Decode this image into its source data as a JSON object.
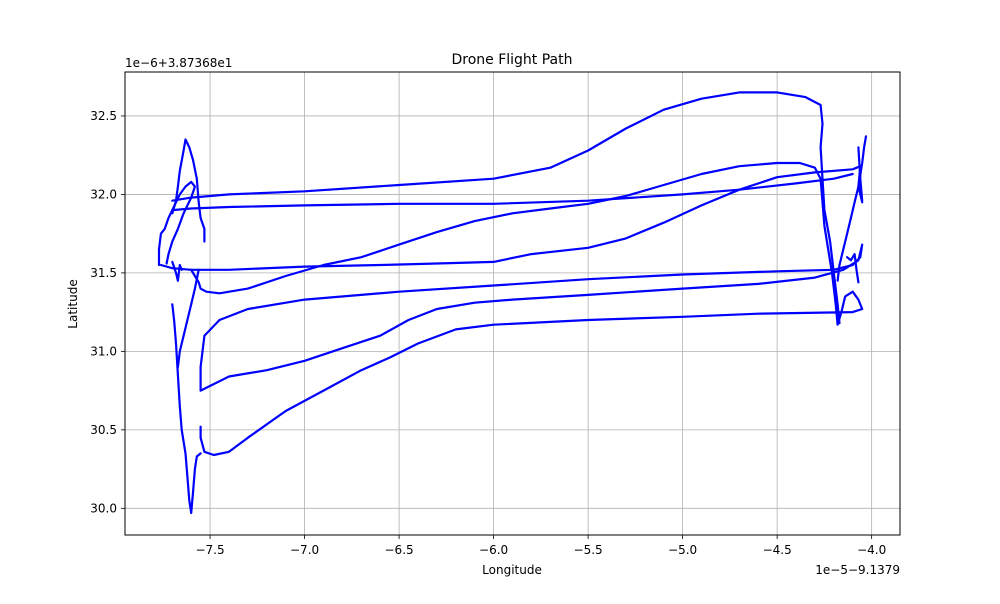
{
  "chart_data": {
    "type": "line",
    "title": "Drone Flight Path",
    "xlabel": "Longitude",
    "ylabel": "Latitude",
    "x_offset_label": "1e−5−9.1379",
    "y_offset_label": "1e−6+3.87368e1",
    "xlim": [
      -7.95,
      -3.85
    ],
    "ylim": [
      29.83,
      32.78
    ],
    "x_ticks": [
      -7.5,
      -7.0,
      -6.5,
      -6.0,
      -5.5,
      -5.0,
      -4.5,
      -4.0
    ],
    "x_tick_labels": [
      "−7.5",
      "−7.0",
      "−6.5",
      "−6.0",
      "−5.5",
      "−5.0",
      "−4.5",
      "−4.0"
    ],
    "y_ticks": [
      30.0,
      30.5,
      31.0,
      31.5,
      32.0,
      32.5
    ],
    "y_tick_labels": [
      "30.0",
      "30.5",
      "31.0",
      "31.5",
      "32.0",
      "32.5"
    ],
    "grid": true,
    "series": [
      {
        "color": "#0000ff",
        "points": [
          [
            -7.6,
            31.52
          ],
          [
            -7.58,
            31.48
          ],
          [
            -7.56,
            31.44
          ],
          [
            -7.55,
            31.4
          ],
          [
            -7.52,
            31.38
          ],
          [
            -7.45,
            31.37
          ],
          [
            -7.3,
            31.4
          ],
          [
            -7.1,
            31.48
          ],
          [
            -6.9,
            31.55
          ],
          [
            -6.7,
            31.6
          ],
          [
            -6.5,
            31.68
          ],
          [
            -6.3,
            31.76
          ],
          [
            -6.1,
            31.83
          ],
          [
            -5.9,
            31.88
          ],
          [
            -5.7,
            31.91
          ],
          [
            -5.5,
            31.94
          ],
          [
            -5.3,
            31.99
          ],
          [
            -5.1,
            32.06
          ],
          [
            -4.9,
            32.13
          ],
          [
            -4.7,
            32.18
          ],
          [
            -4.5,
            32.2
          ],
          [
            -4.38,
            32.2
          ],
          [
            -4.3,
            32.17
          ],
          [
            -4.27,
            32.1
          ],
          [
            -4.26,
            31.95
          ],
          [
            -4.25,
            31.8
          ],
          [
            -4.23,
            31.65
          ],
          [
            -4.21,
            31.5
          ],
          [
            -4.19,
            31.3
          ],
          [
            -4.18,
            31.17
          ],
          [
            -4.16,
            31.25
          ],
          [
            -4.14,
            31.35
          ],
          [
            -4.1,
            31.38
          ],
          [
            -4.07,
            31.33
          ],
          [
            -4.05,
            31.27
          ],
          [
            -4.1,
            31.25
          ],
          [
            -4.6,
            31.24
          ],
          [
            -5.0,
            31.22
          ],
          [
            -5.5,
            31.2
          ],
          [
            -6.0,
            31.17
          ],
          [
            -6.2,
            31.14
          ],
          [
            -6.4,
            31.05
          ],
          [
            -6.55,
            30.96
          ],
          [
            -6.7,
            30.88
          ],
          [
            -6.9,
            30.75
          ],
          [
            -7.1,
            30.62
          ],
          [
            -7.3,
            30.45
          ],
          [
            -7.4,
            30.36
          ],
          [
            -7.48,
            30.34
          ],
          [
            -7.53,
            30.36
          ],
          [
            -7.55,
            30.45
          ],
          [
            -7.55,
            30.52
          ]
        ]
      },
      {
        "color": "#0000ff",
        "points": [
          [
            -7.55,
            30.75
          ],
          [
            -7.5,
            30.78
          ],
          [
            -7.4,
            30.84
          ],
          [
            -7.2,
            30.88
          ],
          [
            -7.0,
            30.94
          ],
          [
            -6.8,
            31.02
          ],
          [
            -6.6,
            31.1
          ],
          [
            -6.45,
            31.2
          ],
          [
            -6.3,
            31.27
          ],
          [
            -6.1,
            31.31
          ],
          [
            -5.9,
            31.33
          ],
          [
            -5.5,
            31.36
          ],
          [
            -5.0,
            31.4
          ],
          [
            -4.6,
            31.43
          ],
          [
            -4.3,
            31.47
          ],
          [
            -4.15,
            31.52
          ],
          [
            -4.07,
            31.58
          ],
          [
            -4.05,
            31.68
          ],
          [
            -4.06,
            31.6
          ],
          [
            -4.1,
            31.55
          ],
          [
            -4.2,
            31.52
          ],
          [
            -4.5,
            31.51
          ],
          [
            -5.0,
            31.49
          ],
          [
            -5.5,
            31.46
          ],
          [
            -6.0,
            31.42
          ],
          [
            -6.5,
            31.38
          ],
          [
            -7.0,
            31.33
          ],
          [
            -7.3,
            31.27
          ],
          [
            -7.45,
            31.2
          ],
          [
            -7.53,
            31.1
          ],
          [
            -7.55,
            30.9
          ],
          [
            -7.55,
            30.75
          ]
        ]
      },
      {
        "color": "#0000ff",
        "points": [
          [
            -7.76,
            31.55
          ],
          [
            -7.7,
            31.53
          ],
          [
            -7.6,
            31.52
          ],
          [
            -7.4,
            31.52
          ],
          [
            -7.0,
            31.54
          ],
          [
            -6.6,
            31.55
          ],
          [
            -6.3,
            31.56
          ],
          [
            -6.0,
            31.57
          ],
          [
            -5.8,
            31.62
          ],
          [
            -5.5,
            31.66
          ],
          [
            -5.3,
            31.72
          ],
          [
            -5.1,
            31.82
          ],
          [
            -4.9,
            31.93
          ],
          [
            -4.7,
            32.03
          ],
          [
            -4.5,
            32.11
          ],
          [
            -4.3,
            32.14
          ],
          [
            -4.1,
            32.16
          ],
          [
            -4.06,
            32.18
          ],
          [
            -4.07,
            32.05
          ],
          [
            -4.05,
            31.95
          ]
        ]
      },
      {
        "color": "#0000ff",
        "points": [
          [
            -7.7,
            31.9
          ],
          [
            -7.6,
            31.91
          ],
          [
            -7.4,
            31.92
          ],
          [
            -7.0,
            31.93
          ],
          [
            -6.5,
            31.94
          ],
          [
            -6.0,
            31.94
          ],
          [
            -5.5,
            31.96
          ],
          [
            -5.0,
            32.0
          ],
          [
            -4.7,
            32.03
          ],
          [
            -4.4,
            32.07
          ],
          [
            -4.2,
            32.1
          ],
          [
            -4.1,
            32.13
          ]
        ]
      },
      {
        "color": "#0000ff",
        "points": [
          [
            -7.7,
            31.96
          ],
          [
            -7.6,
            31.98
          ],
          [
            -7.4,
            32.0
          ],
          [
            -7.0,
            32.02
          ],
          [
            -6.5,
            32.06
          ],
          [
            -6.0,
            32.1
          ],
          [
            -5.7,
            32.17
          ],
          [
            -5.5,
            32.28
          ],
          [
            -5.3,
            32.42
          ],
          [
            -5.1,
            32.54
          ],
          [
            -4.9,
            32.61
          ],
          [
            -4.7,
            32.65
          ],
          [
            -4.5,
            32.65
          ],
          [
            -4.35,
            32.62
          ],
          [
            -4.27,
            32.57
          ],
          [
            -4.26,
            32.45
          ],
          [
            -4.27,
            32.3
          ],
          [
            -4.26,
            32.1
          ],
          [
            -4.25,
            31.9
          ],
          [
            -4.22,
            31.7
          ],
          [
            -4.2,
            31.5
          ],
          [
            -4.18,
            31.3
          ],
          [
            -4.17,
            31.18
          ]
        ]
      },
      {
        "color": "#0000ff",
        "points": [
          [
            -7.7,
            31.88
          ],
          [
            -7.68,
            31.96
          ],
          [
            -7.67,
            32.05
          ],
          [
            -7.66,
            32.15
          ],
          [
            -7.64,
            32.28
          ],
          [
            -7.63,
            32.35
          ],
          [
            -7.61,
            32.3
          ],
          [
            -7.59,
            32.22
          ],
          [
            -7.57,
            32.1
          ],
          [
            -7.56,
            31.95
          ],
          [
            -7.55,
            31.85
          ],
          [
            -7.53,
            31.78
          ],
          [
            -7.53,
            31.7
          ]
        ]
      },
      {
        "color": "#0000ff",
        "points": [
          [
            -7.77,
            31.55
          ],
          [
            -7.77,
            31.65
          ],
          [
            -7.76,
            31.75
          ],
          [
            -7.74,
            31.78
          ],
          [
            -7.72,
            31.85
          ],
          [
            -7.7,
            31.9
          ],
          [
            -7.68,
            31.95
          ],
          [
            -7.66,
            32.0
          ],
          [
            -7.63,
            32.05
          ],
          [
            -7.6,
            32.08
          ],
          [
            -7.58,
            32.05
          ],
          [
            -7.6,
            31.98
          ],
          [
            -7.64,
            31.88
          ],
          [
            -7.67,
            31.78
          ],
          [
            -7.7,
            31.7
          ],
          [
            -7.72,
            31.62
          ],
          [
            -7.73,
            31.56
          ]
        ]
      },
      {
        "color": "#0000ff",
        "points": [
          [
            -7.7,
            31.57
          ],
          [
            -7.68,
            31.5
          ],
          [
            -7.67,
            31.45
          ],
          [
            -7.66,
            31.55
          ],
          [
            -7.65,
            31.52
          ]
        ]
      },
      {
        "color": "#0000ff",
        "points": [
          [
            -7.7,
            31.3
          ],
          [
            -7.69,
            31.2
          ],
          [
            -7.68,
            31.05
          ],
          [
            -7.67,
            30.85
          ],
          [
            -7.66,
            30.65
          ],
          [
            -7.65,
            30.5
          ],
          [
            -7.63,
            30.35
          ],
          [
            -7.62,
            30.2
          ],
          [
            -7.61,
            30.05
          ],
          [
            -7.6,
            29.97
          ],
          [
            -7.59,
            30.1
          ],
          [
            -7.58,
            30.25
          ],
          [
            -7.57,
            30.33
          ],
          [
            -7.55,
            30.35
          ]
        ]
      },
      {
        "color": "#0000ff",
        "points": [
          [
            -7.56,
            31.52
          ],
          [
            -7.58,
            31.4
          ],
          [
            -7.6,
            31.3
          ],
          [
            -7.62,
            31.2
          ],
          [
            -7.64,
            31.1
          ],
          [
            -7.66,
            31.0
          ],
          [
            -7.67,
            30.9
          ]
        ]
      },
      {
        "color": "#0000ff",
        "points": [
          [
            -4.03,
            32.37
          ],
          [
            -4.04,
            32.3
          ],
          [
            -4.05,
            32.2
          ],
          [
            -4.07,
            32.05
          ],
          [
            -4.09,
            31.95
          ],
          [
            -4.11,
            31.85
          ],
          [
            -4.13,
            31.75
          ],
          [
            -4.15,
            31.65
          ],
          [
            -4.17,
            31.55
          ],
          [
            -4.18,
            31.45
          ]
        ]
      },
      {
        "color": "#0000ff",
        "points": [
          [
            -4.06,
            32.17
          ],
          [
            -4.06,
            32.05
          ],
          [
            -4.05,
            31.96
          ],
          [
            -4.06,
            32.1
          ],
          [
            -4.07,
            32.3
          ]
        ]
      },
      {
        "color": "#0000ff",
        "points": [
          [
            -4.13,
            31.6
          ],
          [
            -4.11,
            31.58
          ],
          [
            -4.09,
            31.62
          ],
          [
            -4.08,
            31.52
          ],
          [
            -4.07,
            31.44
          ]
        ]
      }
    ]
  }
}
